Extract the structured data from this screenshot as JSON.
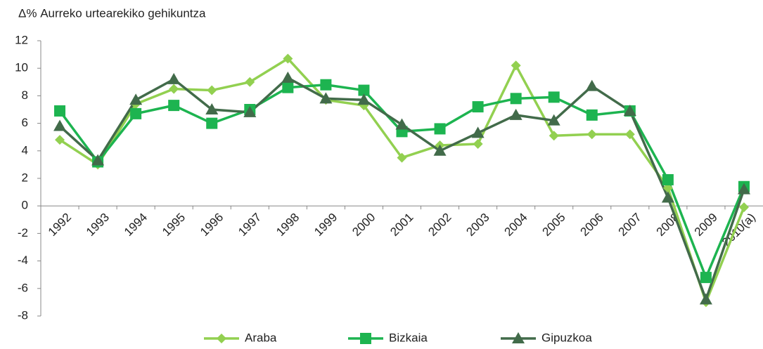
{
  "chart_data": {
    "type": "line",
    "title": "Δ% Aurreko urtearekiko gehikuntza",
    "categories": [
      "1992",
      "1993",
      "1994",
      "1995",
      "1996",
      "1997",
      "1998",
      "1999",
      "2000",
      "2001",
      "2002",
      "2003",
      "2004",
      "2005",
      "2006",
      "2007",
      "2008",
      "2009",
      "2010(a)"
    ],
    "series": [
      {
        "name": "Araba",
        "color": "#92d050",
        "marker": "diamond",
        "values": [
          4.8,
          3.0,
          7.4,
          8.5,
          8.4,
          9.0,
          10.7,
          7.7,
          7.3,
          3.5,
          4.4,
          4.5,
          10.2,
          5.1,
          5.2,
          5.2,
          1.3,
          -7.0,
          -0.1
        ]
      },
      {
        "name": "Bizkaia",
        "color": "#1db450",
        "marker": "square",
        "values": [
          6.9,
          3.2,
          6.7,
          7.3,
          6.0,
          7.0,
          8.6,
          8.8,
          8.4,
          5.4,
          5.6,
          7.2,
          7.8,
          7.9,
          6.6,
          6.9,
          1.9,
          -5.2,
          1.4
        ]
      },
      {
        "name": "Gipuzkoa",
        "color": "#426b4a",
        "marker": "triangle",
        "values": [
          5.8,
          3.3,
          7.7,
          9.2,
          7.0,
          6.8,
          9.3,
          7.8,
          7.7,
          5.9,
          4.0,
          5.3,
          6.6,
          6.2,
          8.7,
          6.9,
          0.6,
          -6.8,
          1.2
        ]
      }
    ],
    "ylim": [
      -8,
      12
    ],
    "yticks": [
      -8,
      -6,
      -4,
      -2,
      0,
      2,
      4,
      6,
      8,
      10,
      12
    ],
    "grid": false,
    "legend": "bottom"
  }
}
